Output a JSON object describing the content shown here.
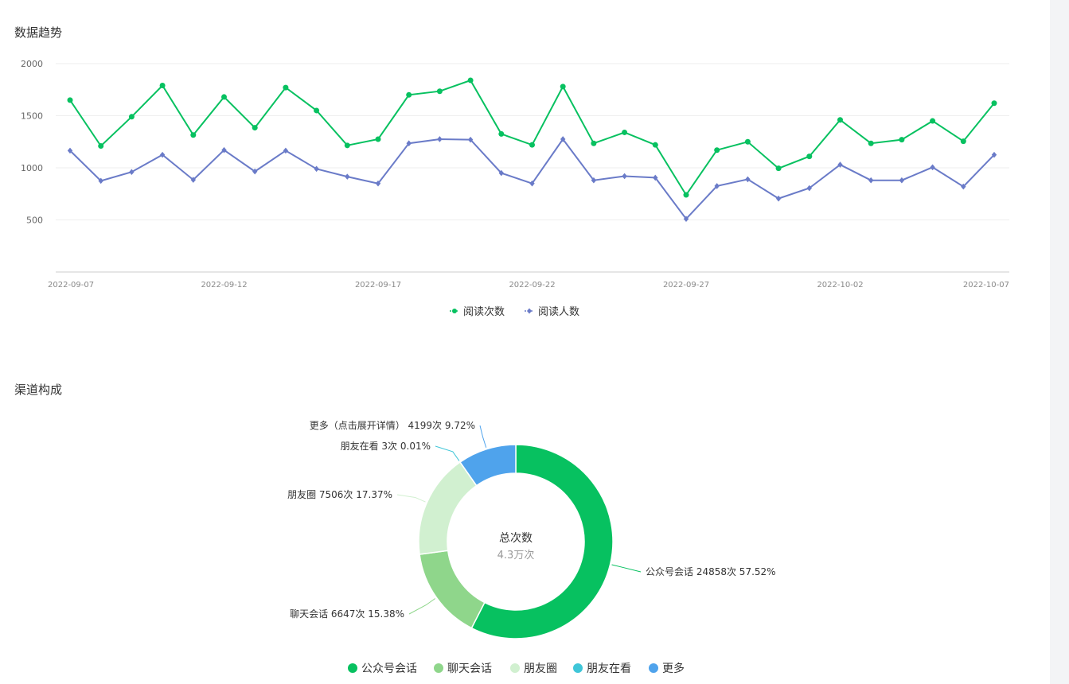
{
  "colors": {
    "read_count": "#07c160",
    "read_users": "#6a7bc8",
    "grid": "#eeeeee",
    "axis": "#cccccc"
  },
  "trend": {
    "title": "数据趋势",
    "chart_data": {
      "type": "line",
      "ylim": [
        0,
        2000
      ],
      "y_ticks": [
        500,
        1000,
        1500,
        2000
      ],
      "x_tick_labels": [
        "2022-09-07",
        "2022-09-12",
        "2022-09-17",
        "2022-09-22",
        "2022-09-27",
        "2022-10-02",
        "2022-10-07"
      ],
      "x": [
        "2022-09-07",
        "2022-09-08",
        "2022-09-09",
        "2022-09-10",
        "2022-09-11",
        "2022-09-12",
        "2022-09-13",
        "2022-09-14",
        "2022-09-15",
        "2022-09-16",
        "2022-09-17",
        "2022-09-18",
        "2022-09-19",
        "2022-09-20",
        "2022-09-21",
        "2022-09-22",
        "2022-09-23",
        "2022-09-24",
        "2022-09-25",
        "2022-09-26",
        "2022-09-27",
        "2022-09-28",
        "2022-09-29",
        "2022-09-30",
        "2022-10-01",
        "2022-10-02",
        "2022-10-03",
        "2022-10-04",
        "2022-10-05",
        "2022-10-06",
        "2022-10-07"
      ],
      "series": [
        {
          "name": "阅读次数",
          "color": "#07c160",
          "marker": "circle",
          "values": [
            1650,
            1210,
            1490,
            1790,
            1315,
            1680,
            1385,
            1770,
            1550,
            1215,
            1275,
            1700,
            1735,
            1840,
            1325,
            1220,
            1780,
            1235,
            1340,
            1220,
            740,
            1170,
            1250,
            995,
            1110,
            1460,
            1235,
            1270,
            1450,
            1255,
            1620
          ]
        },
        {
          "name": "阅读人数",
          "color": "#6a7bc8",
          "marker": "diamond",
          "values": [
            1165,
            875,
            960,
            1125,
            885,
            1170,
            965,
            1165,
            990,
            915,
            850,
            1235,
            1275,
            1270,
            950,
            850,
            1275,
            880,
            920,
            905,
            510,
            825,
            890,
            705,
            805,
            1030,
            880,
            880,
            1005,
            820,
            1125
          ]
        }
      ],
      "grid": true,
      "legend": "bottom-center"
    }
  },
  "channel": {
    "title": "渠道构成",
    "center_title": "总次数",
    "center_value": "4.3万次",
    "chart_data": {
      "type": "pie",
      "donut": true,
      "slices": [
        {
          "name": "公众号会话",
          "label": "公众号会话 24858次 57.52%",
          "value": 24858,
          "percent": 57.52,
          "color": "#07c160"
        },
        {
          "name": "聊天会话",
          "label": "聊天会话 6647次 15.38%",
          "value": 6647,
          "percent": 15.38,
          "color": "#8fd68b"
        },
        {
          "name": "朋友圈",
          "label": "朋友圈 7506次 17.37%",
          "value": 7506,
          "percent": 17.37,
          "color": "#d1f0d0"
        },
        {
          "name": "朋友在看",
          "label": "朋友在看 3次 0.01%",
          "value": 3,
          "percent": 0.01,
          "color": "#3fc6d8"
        },
        {
          "name": "更多",
          "label": "更多（点击展开详情） 4199次 9.72%",
          "value": 4199,
          "percent": 9.72,
          "color": "#4fa3ec"
        }
      ],
      "legend": "bottom-center"
    }
  }
}
